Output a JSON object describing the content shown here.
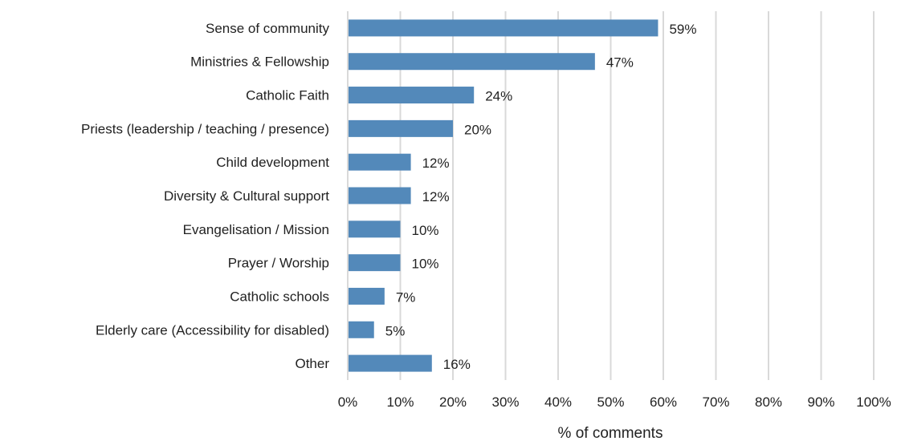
{
  "chart_data": {
    "type": "bar",
    "orientation": "horizontal",
    "categories": [
      "Sense of community",
      "Ministries & Fellowship",
      "Catholic Faith",
      "Priests (leadership / teaching / presence)",
      "Child development",
      "Diversity & Cultural support",
      "Evangelisation / Mission",
      "Prayer / Worship",
      "Catholic schools",
      "Elderly care (Accessibility for disabled)",
      "Other"
    ],
    "values": [
      59,
      47,
      24,
      20,
      12,
      12,
      10,
      10,
      7,
      5,
      16
    ],
    "value_labels": [
      "59%",
      "47%",
      "24%",
      "20%",
      "12%",
      "12%",
      "10%",
      "10%",
      "7%",
      "5%",
      "16%"
    ],
    "xlabel": "% of comments",
    "xlim": [
      0,
      100
    ],
    "xticks": [
      "0%",
      "10%",
      "20%",
      "30%",
      "40%",
      "50%",
      "60%",
      "70%",
      "80%",
      "90%",
      "100%"
    ],
    "grid": "vertical",
    "bar_color": "#5389ba"
  }
}
